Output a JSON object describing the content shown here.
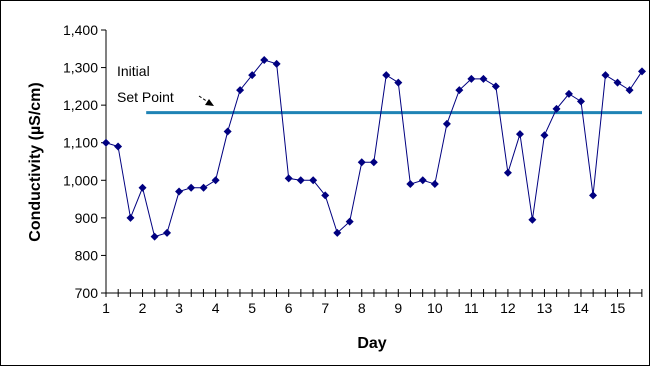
{
  "chart_data": {
    "type": "line",
    "x_label": "Day",
    "y_label": "Conductivity (µS/cm)",
    "x": [
      1,
      1.33,
      1.67,
      2,
      2.33,
      2.67,
      3,
      3.33,
      3.67,
      4,
      4.33,
      4.67,
      5,
      5.33,
      5.67,
      6,
      6.33,
      6.67,
      7,
      7.33,
      7.67,
      8,
      8.33,
      8.67,
      9,
      9.33,
      9.67,
      10,
      10.33,
      10.67,
      11,
      11.33,
      11.67,
      12,
      12.33,
      12.67,
      13,
      13.33,
      13.67,
      14,
      14.33,
      14.67,
      15,
      15.33,
      15.67
    ],
    "series": [
      {
        "name": "Conductivity",
        "color": "#000080",
        "values": [
          1100,
          1090,
          900,
          980,
          850,
          860,
          970,
          980,
          980,
          1000,
          1130,
          1240,
          1280,
          1320,
          1310,
          1005,
          1000,
          1000,
          960,
          860,
          890,
          1048,
          1048,
          1280,
          1260,
          990,
          1000,
          990,
          1150,
          1240,
          1270,
          1270,
          1250,
          1020,
          1123,
          895,
          1120,
          1190,
          1230,
          1210,
          960,
          1280,
          1260,
          1240,
          1290
        ]
      }
    ],
    "reference_line": {
      "value": 1180,
      "x_start": 2.1,
      "color": "#1f83b5",
      "label_lines": [
        "Initial",
        "Set Point"
      ]
    },
    "xlim": [
      1,
      15.67
    ],
    "xticks": [
      1,
      2,
      3,
      4,
      5,
      6,
      7,
      8,
      9,
      10,
      11,
      12,
      13,
      14,
      15
    ],
    "ylim": [
      700,
      1400
    ],
    "yticks": [
      700,
      800,
      900,
      {
        "value": 1000,
        "label": "1,000"
      },
      {
        "value": 1100,
        "label": "1,100"
      },
      {
        "value": 1200,
        "label": "1,200"
      },
      {
        "value": 1300,
        "label": "1,300"
      },
      {
        "value": 1400,
        "label": "1,400"
      }
    ]
  }
}
